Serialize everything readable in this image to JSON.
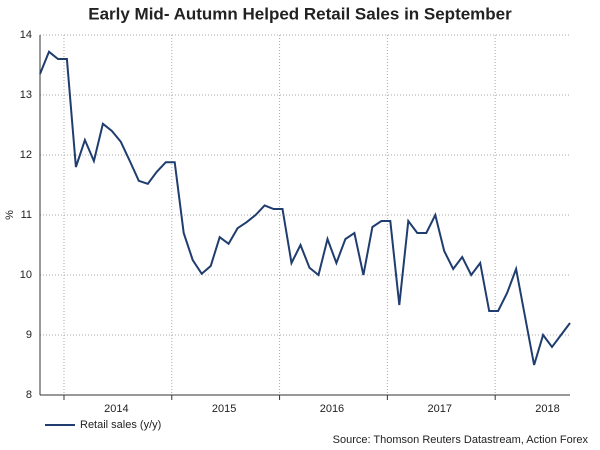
{
  "chart_data": {
    "type": "line",
    "title": "Early Mid- Autumn Helped Retail Sales in September",
    "ylabel": "%",
    "source": "Source: Thomson Reuters Datastream, Action Forex",
    "x": [
      "2013-10",
      "2013-11",
      "2013-12",
      "2014-01",
      "2014-02",
      "2014-03",
      "2014-04",
      "2014-05",
      "2014-06",
      "2014-07",
      "2014-08",
      "2014-09",
      "2014-10",
      "2014-11",
      "2014-12",
      "2015-01",
      "2015-02",
      "2015-03",
      "2015-04",
      "2015-05",
      "2015-06",
      "2015-07",
      "2015-08",
      "2015-09",
      "2015-10",
      "2015-11",
      "2015-12",
      "2016-01",
      "2016-02",
      "2016-03",
      "2016-04",
      "2016-05",
      "2016-06",
      "2016-07",
      "2016-08",
      "2016-09",
      "2016-10",
      "2016-11",
      "2016-12",
      "2017-01",
      "2017-02",
      "2017-03",
      "2017-04",
      "2017-05",
      "2017-06",
      "2017-07",
      "2017-08",
      "2017-09",
      "2017-10",
      "2017-11",
      "2017-12",
      "2018-01",
      "2018-02",
      "2018-03",
      "2018-04",
      "2018-05",
      "2018-06",
      "2018-07",
      "2018-08",
      "2018-09"
    ],
    "series": [
      {
        "name": "Retail sales (y/y)",
        "color": "#1f3d6e",
        "values": [
          13.35,
          13.72,
          13.6,
          13.6,
          11.8,
          12.25,
          11.9,
          12.52,
          12.4,
          12.22,
          11.9,
          11.57,
          11.52,
          11.72,
          11.88,
          11.88,
          10.7,
          10.25,
          10.02,
          10.15,
          10.63,
          10.52,
          10.78,
          10.88,
          11.0,
          11.16,
          11.1,
          11.1,
          10.2,
          10.5,
          10.12,
          10.0,
          10.6,
          10.2,
          10.6,
          10.7,
          10.0,
          10.8,
          10.9,
          10.9,
          9.5,
          10.9,
          10.7,
          10.7,
          11.0,
          10.4,
          10.1,
          10.3,
          10.0,
          10.2,
          9.4,
          9.4,
          9.7,
          10.1,
          9.3,
          8.5,
          9.0,
          8.8,
          9.0,
          9.2
        ]
      }
    ],
    "xlim": [
      "2013-10",
      "2018-09"
    ],
    "xticks": [
      2014,
      2015,
      2016,
      2017,
      2018
    ],
    "ylim": [
      8,
      14
    ],
    "yticks": [
      8,
      9,
      10,
      11,
      12,
      13,
      14
    ],
    "grid": true,
    "legend": "bottom-left"
  }
}
